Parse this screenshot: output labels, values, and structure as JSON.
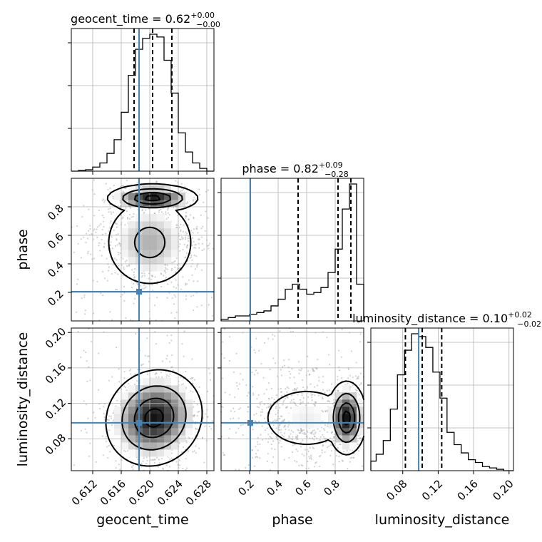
{
  "chart_data": {
    "type": "corner",
    "parameters": [
      "geocent_time",
      "phase",
      "luminosity_distance"
    ],
    "truth_color": "#4682b4",
    "truths": {
      "geocent_time": 0.6185,
      "phase": 0.205,
      "luminosity_distance": 0.098
    },
    "ranges": {
      "geocent_time": [
        0.609,
        0.629
      ],
      "phase": [
        0.0,
        1.0
      ],
      "luminosity_distance": [
        0.044,
        0.205
      ]
    },
    "ticks": {
      "geocent_time": [
        "0.612",
        "0.616",
        "0.620",
        "0.624",
        "0.628"
      ],
      "phase": [
        "0.2",
        "0.4",
        "0.6",
        "0.8"
      ],
      "luminosity_distance": [
        "0.08",
        "0.12",
        "0.16",
        "0.20"
      ]
    },
    "grid": true,
    "titles": [
      {
        "param": "geocent_time",
        "label": "geocent_time = 0.62",
        "plus": "+0.00",
        "minus": "−0.00"
      },
      {
        "param": "phase",
        "label": "phase = 0.82",
        "plus": "+0.09",
        "minus": "−0.28"
      },
      {
        "param": "luminosity_distance",
        "label": "luminosity_distance = 0.10",
        "plus": "+0.02",
        "minus": "−0.02"
      }
    ],
    "quantiles": {
      "geocent_time": [
        0.6178,
        0.6204,
        0.6231
      ],
      "phase": [
        0.54,
        0.82,
        0.91
      ],
      "luminosity_distance": [
        0.083,
        0.102,
        0.124
      ]
    },
    "histograms": {
      "geocent_time": {
        "edges": [
          0.609,
          0.61,
          0.611,
          0.612,
          0.613,
          0.614,
          0.615,
          0.616,
          0.617,
          0.618,
          0.619,
          0.62,
          0.621,
          0.622,
          0.623,
          0.624,
          0.625,
          0.626,
          0.627,
          0.628,
          0.629
        ],
        "counts": [
          0,
          0.5,
          1,
          3,
          6,
          13,
          23,
          43,
          70,
          89,
          97,
          100,
          98,
          81,
          57,
          28,
          14,
          6,
          2,
          0
        ]
      },
      "phase": {
        "edges": [
          0.0,
          0.05,
          0.1,
          0.15,
          0.2,
          0.25,
          0.3,
          0.35,
          0.4,
          0.45,
          0.5,
          0.55,
          0.6,
          0.65,
          0.7,
          0.75,
          0.8,
          0.85,
          0.9,
          0.95,
          1.0
        ],
        "counts": [
          1,
          2,
          3,
          3,
          4,
          5,
          6,
          9,
          13,
          19,
          22,
          19,
          16,
          17,
          20,
          29,
          43,
          67,
          82,
          22
        ]
      },
      "luminosity_distance": {
        "edges": [
          0.044,
          0.05,
          0.058,
          0.066,
          0.074,
          0.082,
          0.09,
          0.098,
          0.106,
          0.114,
          0.122,
          0.13,
          0.138,
          0.146,
          0.154,
          0.162,
          0.17,
          0.178,
          0.186,
          0.194,
          0.205
        ],
        "counts": [
          7,
          12,
          22,
          45,
          70,
          88,
          100,
          98,
          90,
          72,
          53,
          28,
          19,
          13,
          8,
          6,
          3,
          2,
          1,
          0
        ]
      }
    },
    "joint_modes": [
      {
        "x": "geocent_time",
        "y": "phase",
        "cx": 0.6206,
        "cy": 0.87
      },
      {
        "x": "geocent_time",
        "y": "luminosity_distance",
        "cx": 0.6205,
        "cy": 0.103
      },
      {
        "x": "phase",
        "y": "luminosity_distance",
        "cx": 0.88,
        "cy": 0.103
      }
    ]
  }
}
